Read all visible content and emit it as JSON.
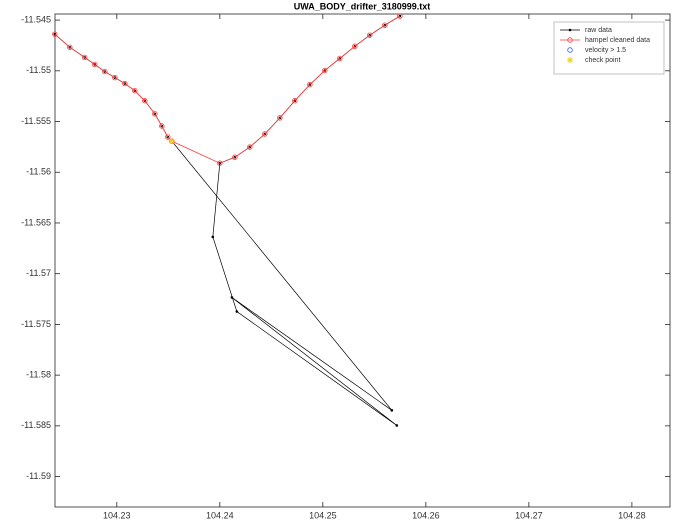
{
  "chart_data": {
    "type": "line",
    "title": "UWA_BODY_drifter_3180999.txt",
    "xlim": [
      104.224,
      104.2837
    ],
    "ylim": [
      -11.593,
      -11.5444
    ],
    "xticks": [
      104.23,
      104.24,
      104.25,
      104.26,
      104.27,
      104.28
    ],
    "yticks": [
      -11.545,
      -11.55,
      -11.555,
      -11.56,
      -11.565,
      -11.57,
      -11.575,
      -11.58,
      -11.585,
      -11.59
    ],
    "legend": "top-right",
    "series": [
      {
        "name": "raw data",
        "color": "#000000",
        "marker": "dot",
        "line": true,
        "x": [
          104.22398,
          104.22544,
          104.22689,
          104.22786,
          104.22883,
          104.22981,
          104.23078,
          104.23175,
          104.23272,
          104.23369,
          104.23437,
          104.23495,
          104.23534,
          104.2567,
          104.24117,
          104.25718,
          104.24165,
          104.23932,
          104.24,
          104.24146,
          104.24291,
          104.24437,
          104.24583,
          104.24728,
          104.24874,
          104.25019,
          104.25165,
          104.25311,
          104.25456,
          104.25602,
          104.25748
        ],
        "values": [
          -11.54639,
          -11.54768,
          -11.54868,
          -11.54937,
          -11.55007,
          -11.55067,
          -11.55126,
          -11.55196,
          -11.55295,
          -11.55424,
          -11.55544,
          -11.55653,
          -11.55693,
          -11.58347,
          -11.57234,
          -11.58496,
          -11.57373,
          -11.56637,
          -11.55911,
          -11.55852,
          -11.55752,
          -11.55623,
          -11.55464,
          -11.55295,
          -11.55136,
          -11.54997,
          -11.54878,
          -11.54758,
          -11.54649,
          -11.5455,
          -11.5446
        ]
      },
      {
        "name": "hampel cleaned data",
        "color": "#ff3b3b",
        "marker": "circle",
        "line": true,
        "x": [
          104.22398,
          104.22544,
          104.22689,
          104.22786,
          104.22883,
          104.22981,
          104.23078,
          104.23175,
          104.23272,
          104.23369,
          104.23437,
          104.23495,
          104.23534,
          104.24,
          104.24146,
          104.24291,
          104.24437,
          104.24583,
          104.24728,
          104.24874,
          104.25019,
          104.25165,
          104.25311,
          104.25456,
          104.25602,
          104.25748
        ],
        "values": [
          -11.54639,
          -11.54768,
          -11.54868,
          -11.54937,
          -11.55007,
          -11.55067,
          -11.55126,
          -11.55196,
          -11.55295,
          -11.55424,
          -11.55544,
          -11.55653,
          -11.55693,
          -11.55911,
          -11.55852,
          -11.55752,
          -11.55623,
          -11.55464,
          -11.55295,
          -11.55136,
          -11.54997,
          -11.54878,
          -11.54758,
          -11.54649,
          -11.5455,
          -11.5446
        ]
      },
      {
        "name": "velocity > 1.5",
        "color": "#3355ff",
        "marker": "circle",
        "line": false,
        "x": [],
        "values": []
      },
      {
        "name": "check point",
        "color": "#f2d21b",
        "marker": "star",
        "line": false,
        "x": [
          104.23534
        ],
        "values": [
          -11.55693
        ]
      }
    ]
  }
}
